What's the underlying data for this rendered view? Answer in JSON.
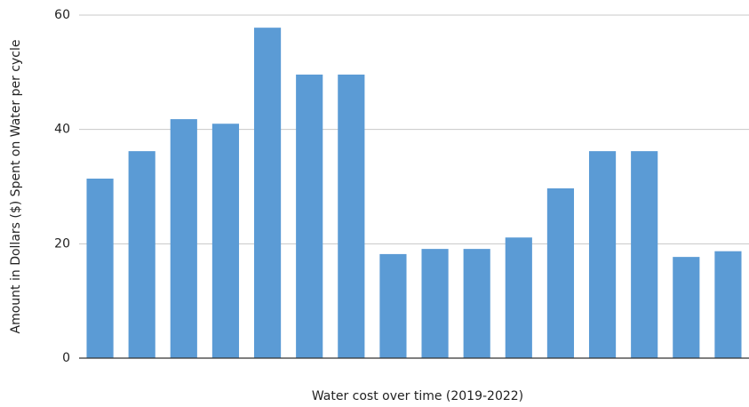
{
  "chart_data": {
    "type": "bar",
    "x_label": "Water cost over time (2019-2022)",
    "y_label": "Amount in Dollars ($) Spent on Water per cycle",
    "categories": [
      null,
      null,
      null,
      null,
      null,
      null,
      null,
      null,
      null,
      null,
      null,
      null,
      null,
      null,
      null,
      null
    ],
    "values": [
      31.4,
      36.2,
      41.8,
      41.0,
      57.8,
      49.6,
      49.6,
      18.2,
      19.1,
      19.1,
      21.1,
      29.7,
      36.2,
      36.2,
      17.7,
      18.7
    ],
    "color": "#5b9bd5",
    "ylim": [
      0,
      60
    ],
    "yticks": [
      0,
      20,
      40,
      60
    ],
    "grid": true
  }
}
